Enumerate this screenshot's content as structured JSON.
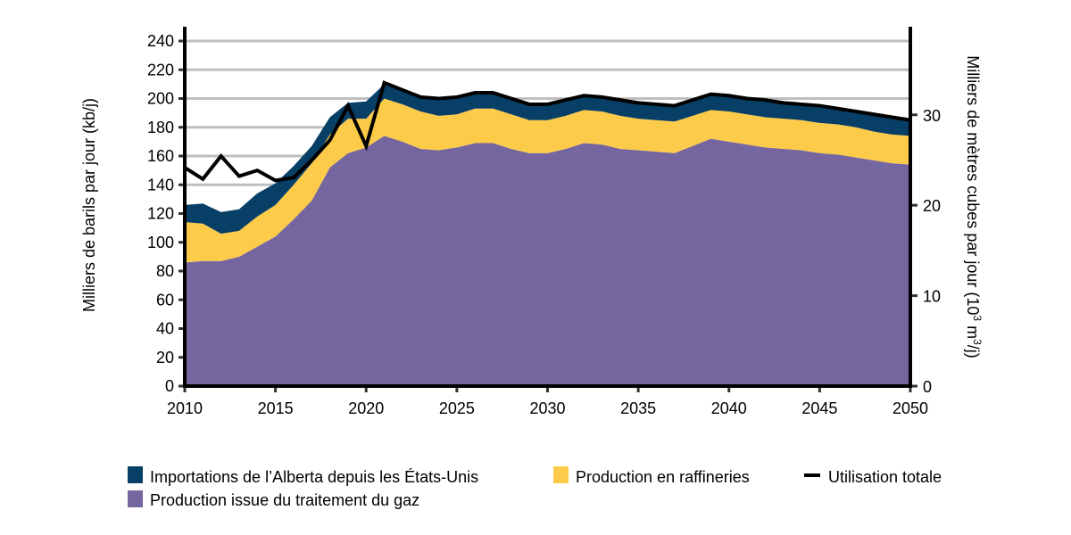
{
  "chart_data": {
    "type": "area",
    "stacked": true,
    "title": "",
    "xlabel": "",
    "ylabel": "Milliers de barils par jour (kb/j)",
    "y2label": "Milliers de mètres cubes par jour (10³ m³/j)",
    "y2label_parts": {
      "pre": "Milliers de mètres cubes par jour (10",
      "sup1": "3",
      "mid": " m",
      "sup2": "3",
      "post": "/j)"
    },
    "xlim": [
      2010,
      2050
    ],
    "ylim": [
      0,
      240
    ],
    "y2lim": [
      0,
      38.16
    ],
    "grid": true,
    "legend_position": "bottom",
    "x_ticks": [
      2010,
      2015,
      2020,
      2025,
      2030,
      2035,
      2040,
      2045,
      2050
    ],
    "y_ticks": [
      0,
      20,
      40,
      60,
      80,
      100,
      120,
      140,
      160,
      180,
      200,
      220,
      240
    ],
    "y2_ticks": [
      0,
      10,
      20,
      30
    ],
    "x": [
      2010,
      2011,
      2012,
      2013,
      2014,
      2015,
      2016,
      2017,
      2018,
      2019,
      2020,
      2021,
      2022,
      2023,
      2024,
      2025,
      2026,
      2027,
      2028,
      2029,
      2030,
      2031,
      2032,
      2033,
      2034,
      2035,
      2036,
      2037,
      2038,
      2039,
      2040,
      2041,
      2042,
      2043,
      2044,
      2045,
      2046,
      2047,
      2048,
      2049,
      2050
    ],
    "series": [
      {
        "name": "Production issue du traitement du gaz",
        "color": "#7566A0",
        "kind": "area",
        "values": [
          86,
          87,
          87,
          90,
          97,
          104,
          116,
          129,
          152,
          162,
          166,
          174,
          170,
          165,
          164,
          166,
          169,
          169,
          165,
          162,
          162,
          165,
          169,
          168,
          165,
          164,
          163,
          162,
          167,
          172,
          170,
          168,
          166,
          165,
          164,
          162,
          161,
          159,
          157,
          155,
          154
        ]
      },
      {
        "name": "Production en raffineries",
        "color": "#FDCB4A",
        "kind": "area",
        "values": [
          28,
          26,
          19,
          18,
          21,
          22,
          24,
          26,
          23,
          24,
          20,
          26,
          26,
          26,
          24,
          23,
          24,
          24,
          24,
          23,
          23,
          23,
          23,
          23,
          23,
          22,
          22,
          22,
          21,
          20,
          21,
          21,
          21,
          21,
          21,
          21,
          21,
          21,
          20,
          20,
          20
        ]
      },
      {
        "name": "Importations de l’Alberta depuis les États-Unis",
        "color": "#073F66",
        "kind": "area",
        "values": [
          12,
          14,
          15,
          15,
          16,
          15,
          13,
          12,
          12,
          11,
          12,
          10,
          10,
          10,
          12,
          12,
          11,
          11,
          11,
          11,
          11,
          11,
          10,
          10,
          11,
          11,
          11,
          11,
          11,
          11,
          11,
          11,
          12,
          11,
          11,
          12,
          11,
          11,
          12,
          12,
          11
        ]
      },
      {
        "name": "Utilisation totale",
        "color": "#000000",
        "kind": "line",
        "values": [
          152,
          144,
          160,
          146,
          150,
          143,
          145,
          157,
          171,
          195,
          167,
          211,
          206,
          201,
          200,
          201,
          204,
          204,
          200,
          196,
          196,
          199,
          202,
          201,
          199,
          197,
          196,
          195,
          199,
          203,
          202,
          200,
          199,
          197,
          196,
          195,
          193,
          191,
          189,
          187,
          185
        ]
      }
    ],
    "legend": [
      {
        "label": "Importations de l’Alberta depuis les États-Unis",
        "color": "#073F66",
        "shape": "square"
      },
      {
        "label": "Production en raffineries",
        "color": "#FDCB4A",
        "shape": "square"
      },
      {
        "label": "Utilisation totale",
        "color": "#000000",
        "shape": "line"
      },
      {
        "label": "Production issue du traitement du gaz",
        "color": "#7566A0",
        "shape": "square"
      }
    ]
  }
}
